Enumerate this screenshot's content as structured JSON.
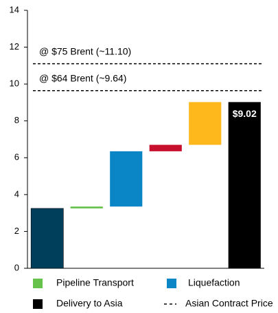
{
  "chart_data": {
    "type": "waterfall",
    "values": [
      3.25,
      0.1,
      3.0,
      0.35,
      2.32
    ],
    "colors": [
      "#003f5c",
      "#66c24a",
      "#0a86c6",
      "#c8102e",
      "#ffb81c"
    ],
    "total": {
      "value": 9.02,
      "label": "$9.02",
      "color": "#000000"
    },
    "ylim": [
      0,
      14
    ],
    "yticks": [
      0,
      2,
      4,
      6,
      8,
      10,
      12,
      14
    ],
    "reference_lines": [
      {
        "value": 11.1,
        "label": "@ $75 Brent (~11.10)"
      },
      {
        "value": 9.64,
        "label": "@ $64 Brent (~9.64)"
      }
    ],
    "legend": [
      {
        "name": "Pipeline Transport",
        "color": "#66c24a"
      },
      {
        "name": "Liquefaction",
        "color": "#0a86c6"
      },
      {
        "name": "Delivery to Asia",
        "color": "#000000"
      },
      {
        "name": "Asian Contract Price",
        "style": "dashed"
      }
    ]
  }
}
